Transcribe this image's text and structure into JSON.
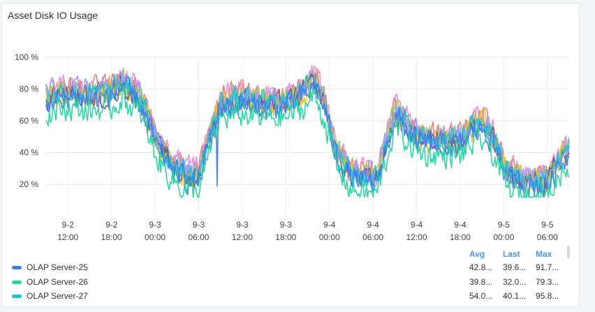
{
  "chart_data": {
    "type": "line",
    "title": "Asset Disk IO Usage",
    "ylabel": "",
    "xlabel": "",
    "ylim": [
      10,
      100
    ],
    "yticks": [
      "20 %",
      "40 %",
      "60 %",
      "80 %",
      "100 %"
    ],
    "ytick_values": [
      20,
      40,
      60,
      80,
      100
    ],
    "xticks": [
      {
        "day": "9-2",
        "time": "12:00",
        "hour": 12
      },
      {
        "day": "9-2",
        "time": "18:00",
        "hour": 18
      },
      {
        "day": "9-3",
        "time": "00:00",
        "hour": 24
      },
      {
        "day": "9-3",
        "time": "06:00",
        "hour": 30
      },
      {
        "day": "9-3",
        "time": "12:00",
        "hour": 36
      },
      {
        "day": "9-3",
        "time": "18:00",
        "hour": 42
      },
      {
        "day": "9-4",
        "time": "00:00",
        "hour": 48
      },
      {
        "day": "9-4",
        "time": "06:00",
        "hour": 54
      },
      {
        "day": "9-4",
        "time": "12:00",
        "hour": 60
      },
      {
        "day": "9-4",
        "time": "18:00",
        "hour": 66
      },
      {
        "day": "9-5",
        "time": "00:00",
        "hour": 72
      },
      {
        "day": "9-5",
        "time": "06:00",
        "hour": 78
      }
    ],
    "xlim_hours": [
      9,
      81
    ],
    "grid": true,
    "legend_placement": "bottom-left",
    "series": [
      {
        "name": "OLAP Server-25",
        "color": "#3b7cf0",
        "avg": "42.8...",
        "last": "39.6...",
        "max": "91.7..."
      },
      {
        "name": "OLAP Server-26",
        "color": "#1fd6a0",
        "avg": "39.8...",
        "last": "32.0...",
        "max": "79.3..."
      },
      {
        "name": "OLAP Server-27",
        "color": "#19c3cf",
        "avg": "54.0...",
        "last": "40.1...",
        "max": "95.8..."
      },
      {
        "color": "#a78bfa"
      },
      {
        "color": "#f08ad8"
      },
      {
        "color": "#e8836e"
      },
      {
        "color": "#9bd44a"
      },
      {
        "color": "#f2c428"
      },
      {
        "color": "#6b5b95"
      },
      {
        "color": "#8fa8f8"
      }
    ],
    "profile": {
      "hours": [
        9,
        12,
        15,
        18,
        19.5,
        22,
        24.5,
        27,
        28.5,
        30,
        31.5,
        33,
        36,
        39,
        42,
        44.5,
        46,
        47.5,
        49,
        51,
        53,
        54.5,
        56,
        57,
        60,
        63,
        66,
        68,
        69.5,
        71,
        72.5,
        75,
        78,
        80,
        81
      ],
      "values": [
        75,
        78,
        76,
        78,
        84,
        73,
        44,
        30,
        26,
        25,
        50,
        71,
        74,
        71,
        72,
        78,
        86,
        68,
        40,
        27,
        24,
        24,
        48,
        66,
        50,
        48,
        48,
        56,
        58,
        44,
        27,
        22,
        22,
        38,
        42
      ]
    },
    "legend": {
      "headers": {
        "avg": "Avg",
        "last": "Last",
        "max": "Max"
      }
    }
  }
}
